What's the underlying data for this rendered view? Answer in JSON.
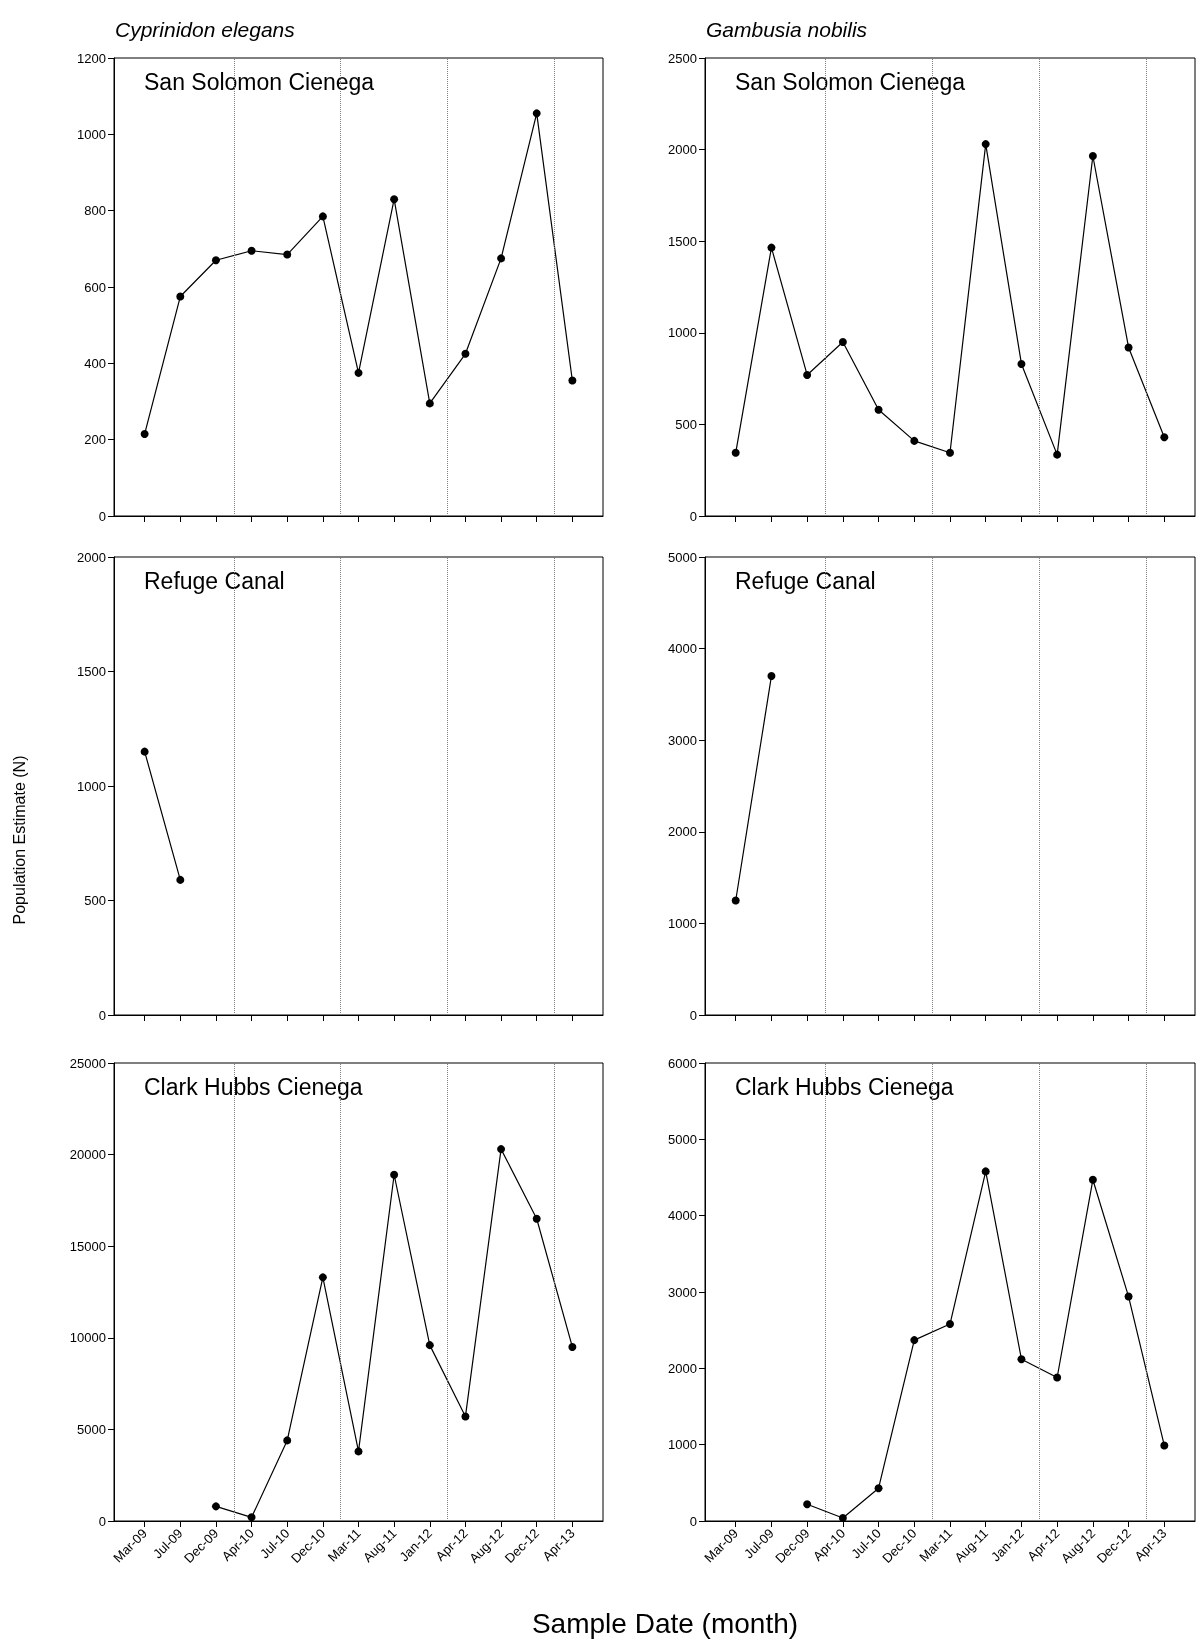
{
  "chart_data": [
    {
      "type": "line",
      "title": "Cyprinidon elegans",
      "subtitle": "San Solomon Cienega",
      "categories": [
        null,
        null,
        null,
        null,
        null,
        null,
        null,
        null,
        null,
        null,
        null,
        null,
        null
      ],
      "series": [
        {
          "color": "#000000",
          "values": [
            215,
            575,
            670,
            695,
            685,
            785,
            375,
            830,
            295,
            425,
            675,
            1055,
            355
          ]
        }
      ],
      "ylim": [
        0,
        1200
      ],
      "yticks": [
        0,
        200,
        400,
        600,
        800,
        1000,
        1200
      ],
      "tick_labels": "y",
      "marker": "circle",
      "line_style": "solid"
    },
    {
      "type": "line",
      "title": "Gambusia nobilis",
      "subtitle": "San Solomon Cienega",
      "categories": [
        null,
        null,
        null,
        null,
        null,
        null,
        null,
        null,
        null,
        null,
        null,
        null,
        null
      ],
      "series": [
        {
          "color": "#000000",
          "values": [
            345,
            1465,
            770,
            950,
            580,
            410,
            345,
            2030,
            830,
            335,
            1965,
            920,
            430
          ]
        }
      ],
      "ylim": [
        0,
        2500
      ],
      "yticks": [
        0,
        500,
        1000,
        1500,
        2000,
        2500
      ],
      "tick_labels": "y",
      "marker": "circle",
      "line_style": "solid"
    },
    {
      "type": "line",
      "subtitle": "Refuge Canal",
      "ylabel": "Population Estimate (N)",
      "categories": [
        null,
        null,
        null,
        null,
        null,
        null,
        null,
        null,
        null,
        null,
        null,
        null,
        null
      ],
      "series": [
        {
          "color": "#000000",
          "values": [
            1150,
            590,
            null,
            null,
            null,
            null,
            null,
            null,
            null,
            null,
            null,
            null,
            null
          ]
        }
      ],
      "ylim": [
        0,
        2000
      ],
      "yticks": [
        0,
        500,
        1000,
        1500,
        2000
      ],
      "tick_labels": "y",
      "marker": "circle",
      "line_style": "solid"
    },
    {
      "type": "line",
      "subtitle": "Refuge Canal",
      "categories": [
        null,
        null,
        null,
        null,
        null,
        null,
        null,
        null,
        null,
        null,
        null,
        null,
        null
      ],
      "series": [
        {
          "color": "#000000",
          "values": [
            1250,
            3700,
            null,
            null,
            null,
            null,
            null,
            null,
            null,
            null,
            null,
            null,
            null
          ]
        }
      ],
      "ylim": [
        0,
        5000
      ],
      "yticks": [
        0,
        1000,
        2000,
        3000,
        4000,
        5000
      ],
      "tick_labels": "y",
      "marker": "circle",
      "line_style": "solid"
    },
    {
      "type": "line",
      "subtitle": "Clark Hubbs Cienega",
      "xlabel": "Sample Date (month)",
      "categories": [
        "Mar-09",
        "Jul-09",
        "Dec-09",
        "Apr-10",
        "Jul-10",
        "Dec-10",
        "Mar-11",
        "Aug-11",
        "Jan-12",
        "Apr-12",
        "Aug-12",
        "Dec-12",
        "Apr-13"
      ],
      "series": [
        {
          "color": "#000000",
          "values": [
            null,
            null,
            800,
            200,
            4400,
            13300,
            3800,
            18900,
            9600,
            5700,
            20300,
            16500,
            9500
          ]
        }
      ],
      "ylim": [
        0,
        25000
      ],
      "yticks": [
        0,
        5000,
        10000,
        15000,
        20000,
        25000
      ],
      "marker": "circle",
      "line_style": "solid"
    },
    {
      "type": "line",
      "subtitle": "Clark Hubbs Cienega",
      "categories": [
        "Mar-09",
        "Jul-09",
        "Dec-09",
        "Apr-10",
        "Jul-10",
        "Dec-10",
        "Mar-11",
        "Aug-11",
        "Jan-12",
        "Apr-12",
        "Aug-12",
        "Dec-12",
        "Apr-13"
      ],
      "series": [
        {
          "color": "#000000",
          "values": [
            null,
            null,
            220,
            40,
            430,
            2370,
            2580,
            4580,
            2120,
            1880,
            4470,
            2940,
            990
          ]
        }
      ],
      "ylim": [
        0,
        6000
      ],
      "yticks": [
        0,
        1000,
        2000,
        3000,
        4000,
        5000,
        6000
      ],
      "marker": "circle",
      "line_style": "solid"
    }
  ]
}
